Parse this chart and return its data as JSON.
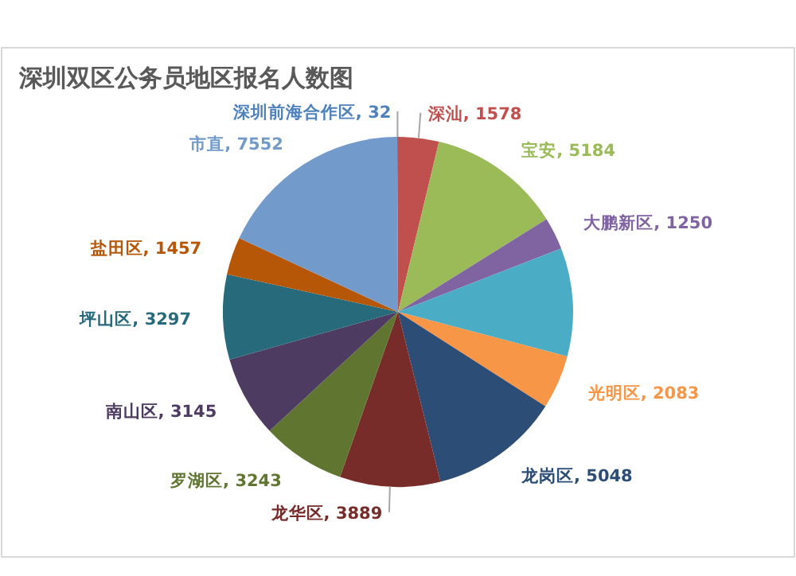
{
  "chart_data": {
    "type": "pie",
    "title": "深圳双区公务员地区报名人数图",
    "categories": [
      "深汕",
      "宝安",
      "大鹏新区",
      null,
      "光明区",
      "龙岗区",
      "龙华区",
      "罗湖区",
      "南山区",
      "坪山区",
      "盐田区",
      "市直",
      "深圳前海合作区"
    ],
    "values": [
      1578,
      5184,
      1250,
      4200,
      2083,
      5048,
      3889,
      3243,
      3145,
      3297,
      1457,
      7552,
      32
    ],
    "value_labels": [
      "1578",
      "5184",
      "1250",
      null,
      "2083",
      "5048",
      "3889",
      "3243",
      "3145",
      "3297",
      "1457",
      "7552",
      "32"
    ],
    "colors": [
      "#c0504d",
      "#9bbb59",
      "#8064a2",
      "#4bacc6",
      "#f79646",
      "#2c4d75",
      "#772c2a",
      "#5f7530",
      "#4d3b62",
      "#276a7c",
      "#b65708",
      "#729aca",
      "#4f81bd"
    ]
  }
}
